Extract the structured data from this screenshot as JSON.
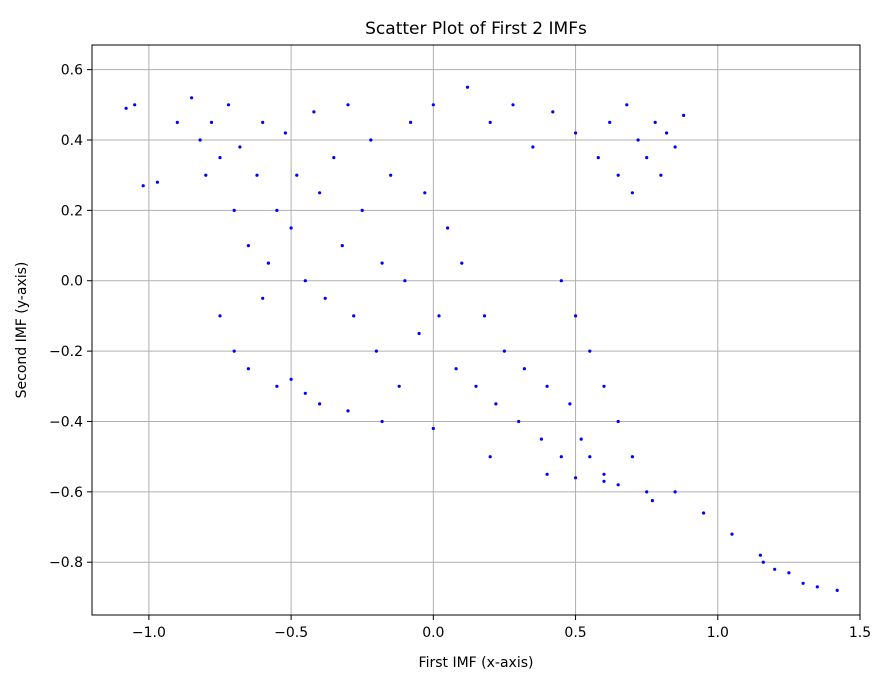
{
  "chart_data": {
    "type": "scatter",
    "title": "Scatter Plot of First 2 IMFs",
    "xlabel": "First IMF (x-axis)",
    "ylabel": "Second IMF (y-axis)",
    "xlim": [
      -1.2,
      1.5
    ],
    "ylim": [
      -0.95,
      0.67
    ],
    "xticks": [
      -1.0,
      -0.5,
      0.0,
      0.5,
      1.0,
      1.5
    ],
    "xtick_labels": [
      "−1.0",
      "−0.5",
      "0.0",
      "0.5",
      "1.0",
      "1.5"
    ],
    "yticks": [
      -0.8,
      -0.6,
      -0.4,
      -0.2,
      0.0,
      0.2,
      0.4,
      0.6
    ],
    "ytick_labels": [
      "−0.8",
      "−0.6",
      "−0.4",
      "−0.2",
      "0.0",
      "0.2",
      "0.4",
      "0.6"
    ],
    "grid": true,
    "legend": "none",
    "marker_color": "#0000ff",
    "series": [
      {
        "points": [
          [
            -1.08,
            0.49
          ],
          [
            -1.05,
            0.5
          ],
          [
            -1.02,
            0.27
          ],
          [
            -0.97,
            0.28
          ],
          [
            -0.9,
            0.45
          ],
          [
            -0.85,
            0.52
          ],
          [
            -0.82,
            0.4
          ],
          [
            -0.8,
            0.3
          ],
          [
            -0.78,
            0.45
          ],
          [
            -0.75,
            0.35
          ],
          [
            -0.72,
            0.5
          ],
          [
            -0.7,
            0.2
          ],
          [
            -0.68,
            0.38
          ],
          [
            -0.65,
            0.1
          ],
          [
            -0.62,
            0.3
          ],
          [
            -0.6,
            0.45
          ],
          [
            -0.58,
            0.05
          ],
          [
            -0.55,
            0.2
          ],
          [
            -0.52,
            0.42
          ],
          [
            -0.5,
            0.15
          ],
          [
            -0.48,
            0.3
          ],
          [
            -0.45,
            0.0
          ],
          [
            -0.42,
            0.48
          ],
          [
            -0.4,
            0.25
          ],
          [
            -0.38,
            -0.05
          ],
          [
            -0.35,
            0.35
          ],
          [
            -0.32,
            0.1
          ],
          [
            -0.3,
            0.5
          ],
          [
            -0.28,
            -0.1
          ],
          [
            -0.25,
            0.2
          ],
          [
            -0.22,
            0.4
          ],
          [
            -0.2,
            -0.2
          ],
          [
            -0.18,
            0.05
          ],
          [
            -0.15,
            0.3
          ],
          [
            -0.12,
            -0.3
          ],
          [
            -0.1,
            0.0
          ],
          [
            -0.08,
            0.45
          ],
          [
            -0.05,
            -0.15
          ],
          [
            -0.03,
            0.25
          ],
          [
            0.0,
            0.5
          ],
          [
            0.02,
            -0.1
          ],
          [
            0.05,
            0.15
          ],
          [
            0.08,
            -0.25
          ],
          [
            0.1,
            0.05
          ],
          [
            0.12,
            0.55
          ],
          [
            0.15,
            -0.3
          ],
          [
            0.18,
            -0.1
          ],
          [
            0.2,
            0.45
          ],
          [
            0.22,
            -0.35
          ],
          [
            0.25,
            -0.2
          ],
          [
            0.28,
            0.5
          ],
          [
            0.3,
            -0.4
          ],
          [
            0.32,
            -0.25
          ],
          [
            0.35,
            0.38
          ],
          [
            0.38,
            -0.45
          ],
          [
            0.4,
            -0.3
          ],
          [
            0.42,
            0.48
          ],
          [
            0.45,
            -0.5
          ],
          [
            0.48,
            -0.35
          ],
          [
            0.5,
            0.42
          ],
          [
            0.52,
            -0.45
          ],
          [
            0.55,
            -0.5
          ],
          [
            0.58,
            0.35
          ],
          [
            0.6,
            -0.55
          ],
          [
            0.62,
            0.45
          ],
          [
            0.65,
            0.3
          ],
          [
            0.68,
            0.5
          ],
          [
            0.7,
            0.25
          ],
          [
            0.72,
            0.4
          ],
          [
            0.75,
            0.35
          ],
          [
            0.78,
            0.45
          ],
          [
            0.8,
            0.3
          ],
          [
            0.82,
            0.42
          ],
          [
            0.85,
            0.38
          ],
          [
            0.88,
            0.47
          ],
          [
            -0.75,
            -0.1
          ],
          [
            -0.7,
            -0.2
          ],
          [
            -0.65,
            -0.25
          ],
          [
            -0.6,
            -0.05
          ],
          [
            -0.55,
            -0.3
          ],
          [
            -0.5,
            -0.28
          ],
          [
            -0.45,
            -0.32
          ],
          [
            -0.4,
            -0.35
          ],
          [
            -0.3,
            -0.37
          ],
          [
            -0.18,
            -0.4
          ],
          [
            0.0,
            -0.42
          ],
          [
            0.2,
            -0.5
          ],
          [
            0.4,
            -0.55
          ],
          [
            0.5,
            -0.56
          ],
          [
            0.6,
            -0.57
          ],
          [
            0.65,
            -0.58
          ],
          [
            0.45,
            0.0
          ],
          [
            0.5,
            -0.1
          ],
          [
            0.55,
            -0.2
          ],
          [
            0.6,
            -0.3
          ],
          [
            0.65,
            -0.4
          ],
          [
            0.7,
            -0.5
          ],
          [
            0.75,
            -0.6
          ],
          [
            0.77,
            -0.625
          ],
          [
            0.85,
            -0.6
          ],
          [
            0.95,
            -0.66
          ],
          [
            1.05,
            -0.72
          ],
          [
            1.15,
            -0.78
          ],
          [
            1.25,
            -0.83
          ],
          [
            1.35,
            -0.87
          ],
          [
            1.42,
            -0.88
          ],
          [
            1.3,
            -0.86
          ],
          [
            1.2,
            -0.82
          ],
          [
            1.16,
            -0.8
          ]
        ]
      }
    ]
  }
}
